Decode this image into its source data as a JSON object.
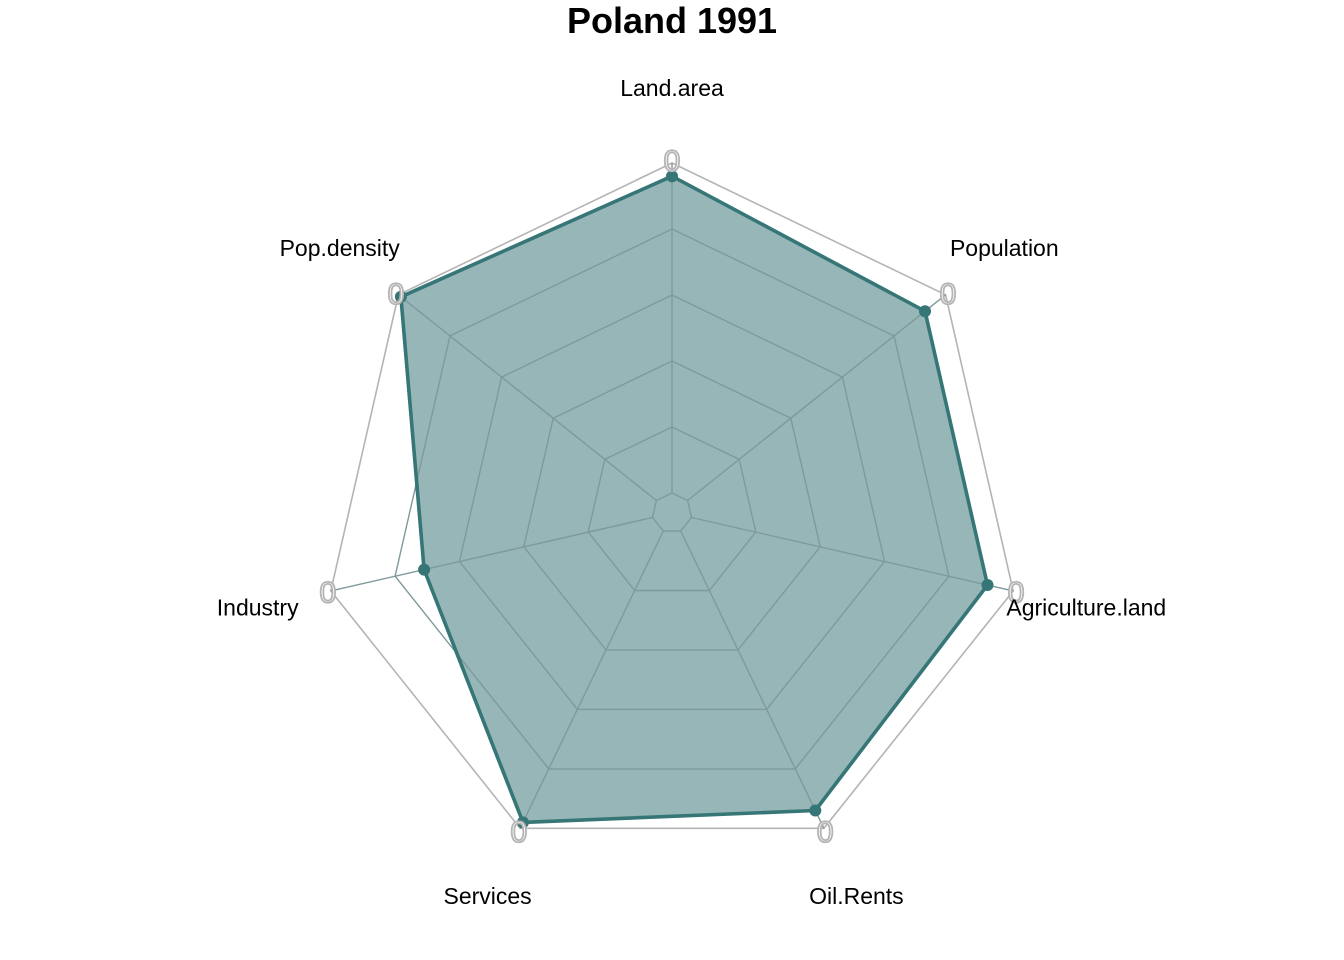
{
  "chart_data": {
    "type": "radar",
    "title": "Poland 1991",
    "axes": [
      "Land.area",
      "Population",
      "Agriculture.land",
      "Oil.Rents",
      "Services",
      "Industry",
      "Pop.density"
    ],
    "range": [
      0,
      1
    ],
    "grid_levels": 5,
    "axis_tick_label": "0",
    "series": [
      {
        "values": [
          0.96,
          0.92,
          0.92,
          0.94,
          0.98,
          0.71,
          0.99
        ]
      }
    ],
    "colors": {
      "series_line": "#367676",
      "series_fill": "#96b6b8",
      "grid": "#b4b4b4",
      "inner_grid": "#7e9a9c"
    }
  }
}
